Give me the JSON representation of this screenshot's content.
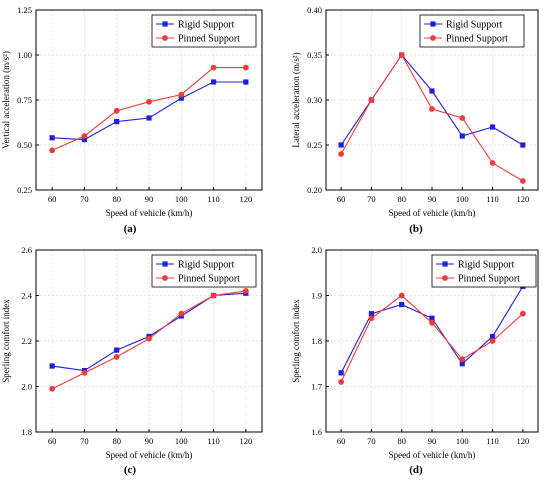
{
  "colors": {
    "rigid": "#1f1fd6",
    "pinned": "#ee3b3b",
    "grid": "#dcdcdc",
    "axis": "#000000"
  },
  "chart_data": [
    {
      "type": "line",
      "panel_label": "(a)",
      "xlabel": "Speed of vehicle (km/h)",
      "ylabel": "Vertical acceleration (m/s²)",
      "x": [
        60,
        70,
        80,
        90,
        100,
        110,
        120
      ],
      "xlim": [
        55,
        125
      ],
      "ylim": [
        0.25,
        1.25
      ],
      "yticks": [
        "0.25",
        "0.50",
        "0.75",
        "1.00",
        "1.25"
      ],
      "grid": true,
      "legend_position": "top-left",
      "series": [
        {
          "name": "Rigid Support",
          "marker": "square",
          "values": [
            0.54,
            0.53,
            0.63,
            0.65,
            0.76,
            0.85,
            0.85
          ]
        },
        {
          "name": "Pinned Support",
          "marker": "circle",
          "values": [
            0.47,
            0.55,
            0.69,
            0.74,
            0.78,
            0.93,
            0.93
          ]
        }
      ]
    },
    {
      "type": "line",
      "panel_label": "(b)",
      "xlabel": "Speed of vehicle (km/h)",
      "ylabel": "Lateral acceleration (m/s²)",
      "x": [
        60,
        70,
        80,
        90,
        100,
        110,
        120
      ],
      "xlim": [
        55,
        125
      ],
      "ylim": [
        0.2,
        0.4
      ],
      "yticks": [
        "0.20",
        "0.25",
        "0.30",
        "0.35",
        "0.40"
      ],
      "grid": true,
      "legend_position": "top-right",
      "series": [
        {
          "name": "Rigid Support",
          "marker": "square",
          "values": [
            0.25,
            0.3,
            0.35,
            0.31,
            0.26,
            0.27,
            0.25
          ]
        },
        {
          "name": "Pinned Support",
          "marker": "circle",
          "values": [
            0.24,
            0.3,
            0.35,
            0.29,
            0.28,
            0.23,
            0.21
          ]
        }
      ]
    },
    {
      "type": "line",
      "panel_label": "(c)",
      "xlabel": "Speed of vehicle (km/h)",
      "ylabel": "Sperling comfort index",
      "x": [
        60,
        70,
        80,
        90,
        100,
        110,
        120
      ],
      "xlim": [
        55,
        125
      ],
      "ylim": [
        1.8,
        2.6
      ],
      "yticks": [
        "1.8",
        "2.0",
        "2.2",
        "2.4",
        "2.6"
      ],
      "grid": true,
      "legend_position": "top-right",
      "series": [
        {
          "name": "Rigid Support",
          "marker": "square",
          "values": [
            2.09,
            2.07,
            2.16,
            2.22,
            2.31,
            2.4,
            2.41
          ]
        },
        {
          "name": "Pinned Support",
          "marker": "circle",
          "values": [
            1.99,
            2.06,
            2.13,
            2.21,
            2.32,
            2.4,
            2.42
          ]
        }
      ]
    },
    {
      "type": "line",
      "panel_label": "(d)",
      "xlabel": "Speed of vehicle (km/h)",
      "ylabel": "Sperling comfort index",
      "x": [
        60,
        70,
        80,
        90,
        100,
        110,
        120
      ],
      "xlim": [
        55,
        125
      ],
      "ylim": [
        1.6,
        2.0
      ],
      "yticks": [
        "1.6",
        "1.7",
        "1.8",
        "1.9",
        "2.0"
      ],
      "grid": true,
      "legend_position": "top-right",
      "series": [
        {
          "name": "Rigid Support",
          "marker": "square",
          "values": [
            1.73,
            1.86,
            1.88,
            1.85,
            1.75,
            1.81,
            1.92
          ]
        },
        {
          "name": "Pinned Support",
          "marker": "circle",
          "values": [
            1.71,
            1.85,
            1.9,
            1.84,
            1.76,
            1.8,
            1.86
          ]
        }
      ]
    }
  ]
}
